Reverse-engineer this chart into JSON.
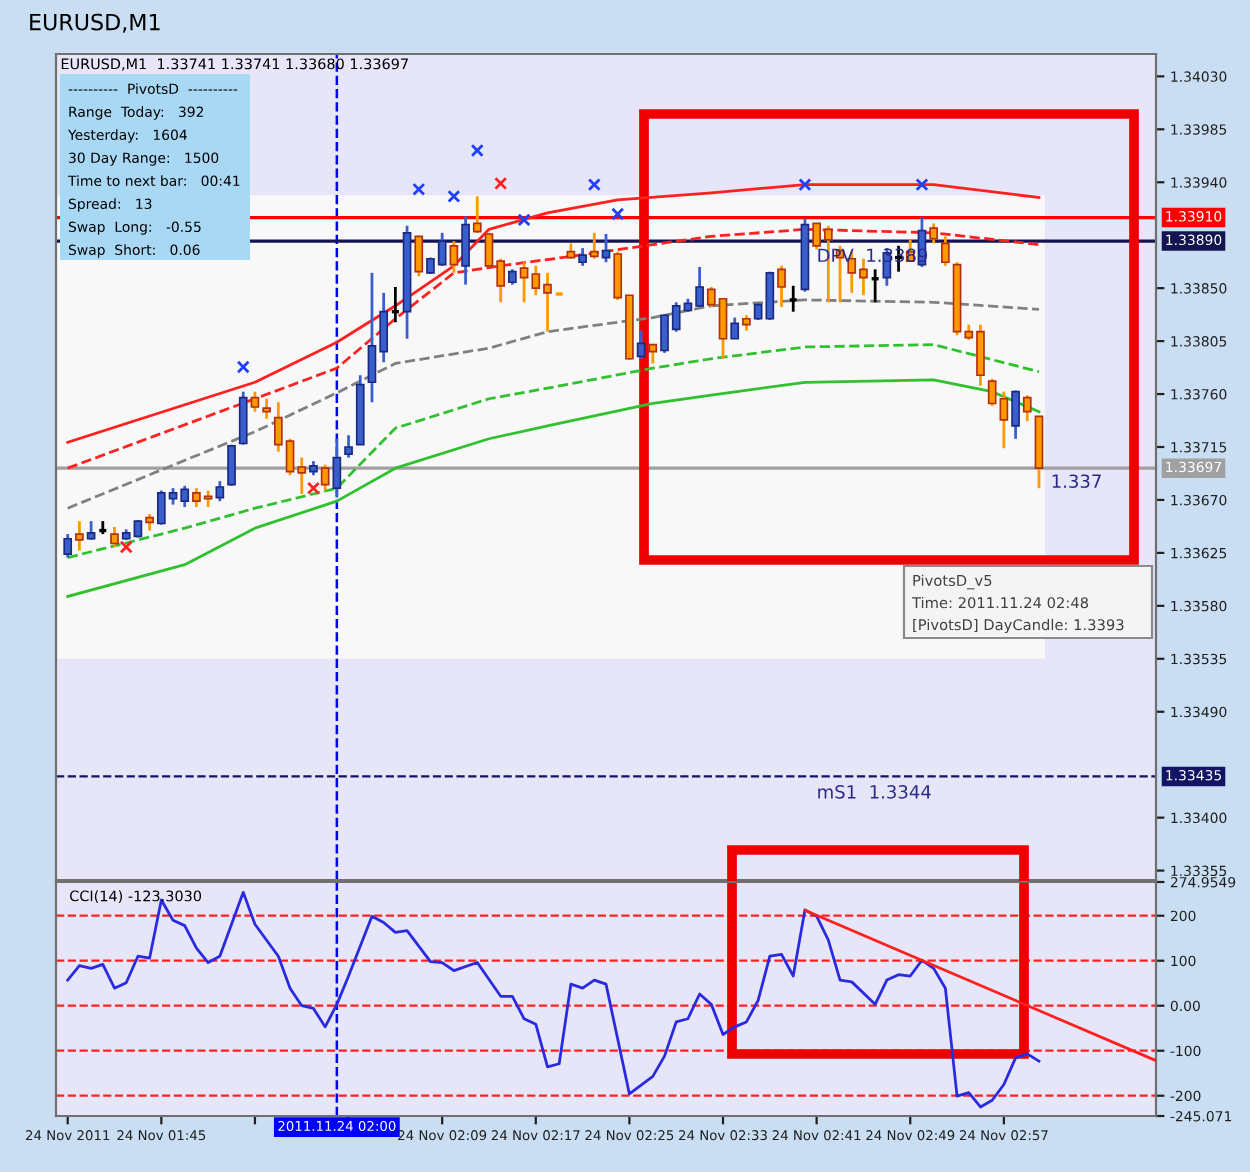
{
  "chart_data": [
    {
      "type": "candlestick",
      "title": "EURUSD,M1",
      "subtitle": "EURUSD,M1  1.33741 1.33741 1.33680 1.33697",
      "x": [
        "2011-11-24T01:37",
        "2011-11-24T01:38",
        "2011-11-24T01:39",
        "2011-11-24T01:40",
        "2011-11-24T01:41",
        "2011-11-24T01:42",
        "2011-11-24T01:43",
        "2011-11-24T01:44",
        "2011-11-24T01:45",
        "2011-11-24T01:46",
        "2011-11-24T01:47",
        "2011-11-24T01:48",
        "2011-11-24T01:49",
        "2011-11-24T01:50",
        "2011-11-24T01:51",
        "2011-11-24T01:52",
        "2011-11-24T01:53",
        "2011-11-24T01:54",
        "2011-11-24T01:55",
        "2011-11-24T01:56",
        "2011-11-24T01:57",
        "2011-11-24T01:58",
        "2011-11-24T01:59",
        "2011-11-24T02:00",
        "2011-11-24T02:01",
        "2011-11-24T02:02",
        "2011-11-24T02:03",
        "2011-11-24T02:04",
        "2011-11-24T02:05",
        "2011-11-24T02:06",
        "2011-11-24T02:07",
        "2011-11-24T02:08",
        "2011-11-24T02:09",
        "2011-11-24T02:10",
        "2011-11-24T02:11",
        "2011-11-24T02:12",
        "2011-11-24T02:13",
        "2011-11-24T02:14",
        "2011-11-24T02:15",
        "2011-11-24T02:16",
        "2011-11-24T02:17",
        "2011-11-24T02:18",
        "2011-11-24T02:19",
        "2011-11-24T02:20",
        "2011-11-24T02:21",
        "2011-11-24T02:22",
        "2011-11-24T02:23",
        "2011-11-24T02:24",
        "2011-11-24T02:25",
        "2011-11-24T02:26",
        "2011-11-24T02:27",
        "2011-11-24T02:28",
        "2011-11-24T02:29",
        "2011-11-24T02:30",
        "2011-11-24T02:31",
        "2011-11-24T02:32",
        "2011-11-24T02:33",
        "2011-11-24T02:34",
        "2011-11-24T02:35",
        "2011-11-24T02:36",
        "2011-11-24T02:37",
        "2011-11-24T02:38",
        "2011-11-24T02:39",
        "2011-11-24T02:40",
        "2011-11-24T02:41",
        "2011-11-24T02:42",
        "2011-11-24T02:43",
        "2011-11-24T02:44",
        "2011-11-24T02:45",
        "2011-11-24T02:46",
        "2011-11-24T02:47",
        "2011-11-24T02:48",
        "2011-11-24T02:49",
        "2011-11-24T02:50",
        "2011-11-24T02:51",
        "2011-11-24T02:52",
        "2011-11-24T02:53",
        "2011-11-24T02:54",
        "2011-11-24T02:55",
        "2011-11-24T02:56",
        "2011-11-24T02:57",
        "2011-11-24T02:58",
        "2011-11-24T02:59",
        "2011-11-24T03:00"
      ],
      "ohlc": [
        [
          1.33624,
          1.33641,
          1.33621,
          1.33637
        ],
        [
          1.33641,
          1.33652,
          1.33627,
          1.33636
        ],
        [
          1.33637,
          1.33652,
          1.33636,
          1.33642
        ],
        [
          1.33644,
          1.33652,
          1.33641,
          1.33644
        ],
        [
          1.33641,
          1.33647,
          1.3363,
          1.33633
        ],
        [
          1.33637,
          1.33645,
          1.33636,
          1.33642
        ],
        [
          1.33639,
          1.33653,
          1.33638,
          1.33652
        ],
        [
          1.33655,
          1.33658,
          1.33644,
          1.33651
        ],
        [
          1.3365,
          1.33678,
          1.33649,
          1.33676
        ],
        [
          1.33671,
          1.3368,
          1.33666,
          1.33676
        ],
        [
          1.33669,
          1.33682,
          1.33664,
          1.33679
        ],
        [
          1.33676,
          1.3368,
          1.33664,
          1.33669
        ],
        [
          1.33673,
          1.33678,
          1.33664,
          1.33671
        ],
        [
          1.33672,
          1.33686,
          1.33669,
          1.33681
        ],
        [
          1.33683,
          1.33717,
          1.33682,
          1.33716
        ],
        [
          1.33718,
          1.33762,
          1.33717,
          1.33757
        ],
        [
          1.33757,
          1.33762,
          1.33745,
          1.33749
        ],
        [
          1.33748,
          1.33756,
          1.33739,
          1.33745
        ],
        [
          1.3374,
          1.33753,
          1.33711,
          1.33717
        ],
        [
          1.3372,
          1.33722,
          1.33691,
          1.33694
        ],
        [
          1.33698,
          1.33706,
          1.33675,
          1.33693
        ],
        [
          1.33694,
          1.33703,
          1.33691,
          1.33699
        ],
        [
          1.33697,
          1.337,
          1.33678,
          1.33683
        ],
        [
          1.3368,
          1.33722,
          1.33672,
          1.33706
        ],
        [
          1.33709,
          1.33725,
          1.33706,
          1.33715
        ],
        [
          1.33717,
          1.33776,
          1.33717,
          1.33768
        ],
        [
          1.3377,
          1.33863,
          1.33753,
          1.33801
        ],
        [
          1.33796,
          1.33846,
          1.33787,
          1.3383
        ],
        [
          1.3383,
          1.33851,
          1.33821,
          1.3383
        ],
        [
          1.3383,
          1.33903,
          1.33807,
          1.33897
        ],
        [
          1.33894,
          1.33894,
          1.3386,
          1.33864
        ],
        [
          1.33863,
          1.33876,
          1.33862,
          1.33875
        ],
        [
          1.3387,
          1.33897,
          1.33869,
          1.3389
        ],
        [
          1.33886,
          1.3389,
          1.33863,
          1.3387
        ],
        [
          1.33869,
          1.33911,
          1.33853,
          1.33904
        ],
        [
          1.33905,
          1.33928,
          1.33897,
          1.33898
        ],
        [
          1.33896,
          1.33897,
          1.33868,
          1.33869
        ],
        [
          1.33873,
          1.33875,
          1.33838,
          1.33852
        ],
        [
          1.33855,
          1.33866,
          1.33853,
          1.33864
        ],
        [
          1.33867,
          1.33872,
          1.33838,
          1.33859
        ],
        [
          1.33862,
          1.33869,
          1.33844,
          1.3385
        ],
        [
          1.33853,
          1.33863,
          1.33813,
          1.33846
        ],
        [
          1.33845,
          1.33846,
          1.33844,
          1.33845
        ],
        [
          1.33881,
          1.33888,
          1.33875,
          1.33876
        ],
        [
          1.33872,
          1.33884,
          1.33869,
          1.33878
        ],
        [
          1.33881,
          1.33897,
          1.33875,
          1.33877
        ],
        [
          1.33876,
          1.33896,
          1.33872,
          1.33882
        ],
        [
          1.33879,
          1.33881,
          1.3384,
          1.33842
        ],
        [
          1.33844,
          1.33844,
          1.33789,
          1.3379
        ],
        [
          1.33792,
          1.33814,
          1.3379,
          1.33803
        ],
        [
          1.33802,
          1.33802,
          1.33786,
          1.33796
        ],
        [
          1.33797,
          1.33828,
          1.33795,
          1.33827
        ],
        [
          1.33815,
          1.33838,
          1.33813,
          1.33835
        ],
        [
          1.33831,
          1.33841,
          1.3383,
          1.33837
        ],
        [
          1.33835,
          1.33868,
          1.33834,
          1.33851
        ],
        [
          1.33849,
          1.33851,
          1.33834,
          1.33836
        ],
        [
          1.33841,
          1.33841,
          1.3379,
          1.33807
        ],
        [
          1.33807,
          1.33825,
          1.33807,
          1.3382
        ],
        [
          1.33824,
          1.33827,
          1.33814,
          1.33819
        ],
        [
          1.33824,
          1.33837,
          1.33823,
          1.33836
        ],
        [
          1.33824,
          1.33864,
          1.33823,
          1.33863
        ],
        [
          1.33866,
          1.33869,
          1.33834,
          1.33851
        ],
        [
          1.3384,
          1.33852,
          1.3383,
          1.3384
        ],
        [
          1.33849,
          1.33909,
          1.33847,
          1.33904
        ],
        [
          1.33905,
          1.33905,
          1.33883,
          1.33886
        ],
        [
          1.339,
          1.33903,
          1.33838,
          1.33891
        ],
        [
          1.33882,
          1.33886,
          1.33838,
          1.33876
        ],
        [
          1.33875,
          1.33881,
          1.33846,
          1.33863
        ],
        [
          1.33866,
          1.33875,
          1.33844,
          1.33859
        ],
        [
          1.33858,
          1.33866,
          1.33838,
          1.33858
        ],
        [
          1.33859,
          1.33884,
          1.33852,
          1.3388
        ],
        [
          1.33876,
          1.33886,
          1.33864,
          1.33876
        ],
        [
          1.33881,
          1.33891,
          1.33873,
          1.33873
        ],
        [
          1.3387,
          1.3391,
          1.33868,
          1.33899
        ],
        [
          1.33901,
          1.33905,
          1.33888,
          1.33892
        ],
        [
          1.33888,
          1.33894,
          1.33869,
          1.33872
        ],
        [
          1.3387,
          1.33872,
          1.3381,
          1.33813
        ],
        [
          1.33813,
          1.33819,
          1.33806,
          1.33808
        ],
        [
          1.33813,
          1.33819,
          1.33767,
          1.33776
        ],
        [
          1.33771,
          1.33773,
          1.3375,
          1.33752
        ],
        [
          1.33756,
          1.33762,
          1.33714,
          1.33738
        ],
        [
          1.33733,
          1.33763,
          1.33722,
          1.33762
        ],
        [
          1.33757,
          1.33759,
          1.33737,
          1.33745
        ],
        [
          1.33741,
          1.33741,
          1.3368,
          1.33697
        ]
      ],
      "colors": [
        "#3a5fcd",
        "#ff9900",
        "#3a5fcd",
        "#000000",
        "#ff9900",
        "#3a5fcd",
        "#3a5fcd",
        "#ff9900",
        "#3a5fcd",
        "#3a5fcd",
        "#3a5fcd",
        "#ff9900",
        "#ff9900",
        "#3a5fcd",
        "#3a5fcd",
        "#3a5fcd",
        "#ff9900",
        "#ff9900",
        "#ff9900",
        "#ff9900",
        "#ff9900",
        "#3a5fcd",
        "#ff9900",
        "#3a5fcd",
        "#3a5fcd",
        "#3a5fcd",
        "#3a5fcd",
        "#3a5fcd",
        "#000000",
        "#3a5fcd",
        "#ff9900",
        "#3a5fcd",
        "#3a5fcd",
        "#ff9900",
        "#3a5fcd",
        "#ff9900",
        "#ff9900",
        "#ff9900",
        "#3a5fcd",
        "#ff9900",
        "#ff9900",
        "#ff9900",
        "#ff9900",
        "#ff9900",
        "#3a5fcd",
        "#ff9900",
        "#3a5fcd",
        "#ff9900",
        "#ff9900",
        "#3a5fcd",
        "#ff9900",
        "#3a5fcd",
        "#3a5fcd",
        "#3a5fcd",
        "#3a5fcd",
        "#ff9900",
        "#ff9900",
        "#3a5fcd",
        "#ff9900",
        "#3a5fcd",
        "#3a5fcd",
        "#ff9900",
        "#000000",
        "#3a5fcd",
        "#ff9900",
        "#ff9900",
        "#ff9900",
        "#ff9900",
        "#ff9900",
        "#000000",
        "#3a5fcd",
        "#000000",
        "#ff9900",
        "#3a5fcd",
        "#ff9900",
        "#ff9900",
        "#ff9900",
        "#ff9900",
        "#ff9900",
        "#ff9900",
        "#ff9900",
        "#3a5fcd",
        "#ff9900",
        "#ff9900"
      ],
      "series": [
        {
          "type": "line",
          "color": "#ff2020",
          "line_style": "solid",
          "x": [
            "2011-11-24T01:37",
            "2011-11-24T01:53",
            "2011-11-24T02:00",
            "2011-11-24T02:05",
            "2011-11-24T02:10",
            "2011-11-24T02:13",
            "2011-11-24T02:18",
            "2011-11-24T02:24",
            "2011-11-24T02:32",
            "2011-11-24T02:40",
            "2011-11-24T02:51",
            "2011-11-24T03:00"
          ],
          "values": [
            1.33719,
            1.3377,
            1.33804,
            1.33835,
            1.33869,
            1.339,
            1.33914,
            1.33925,
            1.33931,
            1.33938,
            1.33938,
            1.33927
          ]
        },
        {
          "type": "line",
          "color": "#ff2020",
          "line_style": "dashed",
          "x": [
            "2011-11-24T01:37",
            "2011-11-24T01:53",
            "2011-11-24T02:00",
            "2011-11-24T02:05",
            "2011-11-24T02:10",
            "2011-11-24T02:14",
            "2011-11-24T02:20",
            "2011-11-24T02:27",
            "2011-11-24T02:32",
            "2011-11-24T02:40",
            "2011-11-24T02:51",
            "2011-11-24T03:00"
          ],
          "values": [
            1.33697,
            1.33756,
            1.33782,
            1.33824,
            1.33863,
            1.33869,
            1.33877,
            1.33887,
            1.33894,
            1.339,
            1.33897,
            1.33887
          ]
        },
        {
          "type": "line",
          "color": "#808080",
          "line_style": "dashed",
          "x": [
            "2011-11-24T01:37",
            "2011-11-24T01:53",
            "2011-11-24T02:00",
            "2011-11-24T02:05",
            "2011-11-24T02:13",
            "2011-11-24T02:18",
            "2011-11-24T02:27",
            "2011-11-24T02:32",
            "2011-11-24T02:40",
            "2011-11-24T02:51",
            "2011-11-24T03:00"
          ],
          "values": [
            1.33663,
            1.33728,
            1.33761,
            1.33786,
            1.33799,
            1.33813,
            1.33825,
            1.33835,
            1.3384,
            1.33838,
            1.33832
          ]
        },
        {
          "type": "line",
          "color": "#30c030",
          "line_style": "dashed",
          "x": [
            "2011-11-24T01:37",
            "2011-11-24T01:47",
            "2011-11-24T01:53",
            "2011-11-24T02:00",
            "2011-11-24T02:05",
            "2011-11-24T02:13",
            "2011-11-24T02:18",
            "2011-11-24T02:27",
            "2011-11-24T02:32",
            "2011-11-24T02:40",
            "2011-11-24T02:51",
            "2011-11-24T03:00"
          ],
          "values": [
            1.33621,
            1.33646,
            1.33663,
            1.3368,
            1.33731,
            1.33756,
            1.33765,
            1.33782,
            1.3379,
            1.338,
            1.33802,
            1.33779
          ]
        },
        {
          "type": "line",
          "color": "#30c030",
          "line_style": "solid",
          "x": [
            "2011-11-24T01:37",
            "2011-11-24T01:47",
            "2011-11-24T01:53",
            "2011-11-24T02:00",
            "2011-11-24T02:05",
            "2011-11-24T02:13",
            "2011-11-24T02:18",
            "2011-11-24T02:27",
            "2011-11-24T02:32",
            "2011-11-24T02:40",
            "2011-11-24T02:51",
            "2011-11-24T02:56",
            "2011-11-24T03:00"
          ],
          "values": [
            1.33588,
            1.33615,
            1.33646,
            1.33669,
            1.33697,
            1.33722,
            1.33733,
            1.33752,
            1.33759,
            1.3377,
            1.33772,
            1.33762,
            1.33745
          ]
        },
        {
          "type": "scatter",
          "color": "#2040ff",
          "marker": "cross",
          "x": [
            "2011-11-24T01:52",
            "2011-11-24T02:07",
            "2011-11-24T02:10",
            "2011-11-24T02:12",
            "2011-11-24T02:16",
            "2011-11-24T02:22",
            "2011-11-24T02:24",
            "2011-11-24T02:40",
            "2011-11-24T02:50"
          ],
          "values": [
            1.33783,
            1.33934,
            1.33928,
            1.33967,
            1.33908,
            1.33938,
            1.33913,
            1.33938,
            1.33938
          ]
        },
        {
          "type": "scatter",
          "color": "#ff2020",
          "marker": "cross",
          "x": [
            "2011-11-24T01:42",
            "2011-11-24T01:58",
            "2011-11-24T02:14"
          ],
          "values": [
            1.3363,
            1.3368,
            1.33939
          ]
        }
      ],
      "xlim": [
        "2011-11-24T01:36",
        "2011-11-24T03:10"
      ],
      "ylim": [
        1.33347,
        1.34049
      ],
      "yticks": [
        {
          "value": 1.3403,
          "label": "1.34030"
        },
        {
          "value": 1.33985,
          "label": "1.33985"
        },
        {
          "value": 1.3394,
          "label": "1.33940"
        },
        {
          "value": 1.3385,
          "label": "1.33850"
        },
        {
          "value": 1.33805,
          "label": "1.33805"
        },
        {
          "value": 1.3376,
          "label": "1.33760"
        },
        {
          "value": 1.33715,
          "label": "1.33715"
        },
        {
          "value": 1.3367,
          "label": "1.33670"
        },
        {
          "value": 1.33625,
          "label": "1.33625"
        },
        {
          "value": 1.3358,
          "label": "1.33580"
        },
        {
          "value": 1.33535,
          "label": "1.33535"
        },
        {
          "value": 1.3349,
          "label": "1.33490"
        },
        {
          "value": 1.334,
          "label": "1.33400"
        },
        {
          "value": 1.33355,
          "label": "1.33355"
        }
      ],
      "tick_labels": "y",
      "bands": [
        {
          "axis": "y",
          "from": 1.33535,
          "to": 1.33929,
          "color": "#f8f8f8"
        }
      ],
      "ref_lines": [
        {
          "axis": "x",
          "value": "2011-11-24T02:00",
          "color": "#0000ff",
          "line_style": "dashed"
        },
        {
          "axis": "y",
          "value": 1.3391,
          "label": "1.33910",
          "color": "#ff0000",
          "line_style": "solid"
        },
        {
          "axis": "y",
          "value": 1.3389,
          "label": "1.33890",
          "color": "#141450",
          "line_style": "solid"
        },
        {
          "axis": "y",
          "value": 1.33697,
          "label": "1.33697",
          "color": "#a0a0a0",
          "line_style": "solid"
        },
        {
          "axis": "y",
          "value": 1.33435,
          "label": "1.33435",
          "color": "#141464",
          "line_style": "dashed"
        }
      ],
      "annotations": [
        "----------  PivotsD  ----------",
        "Range  Today:   392",
        "Yesterday:   1604",
        "30 Day Range:   1500",
        "Time to next bar:   00:41",
        "Spread:   13",
        "Swap  Long:   -0.55",
        "Swap  Short:   0.06",
        "PivotsD_v5",
        "Time: 2011.11.24 02:48",
        "[PivotsD] DayCandle: 1.3393",
        {
          "text": "DPV  1.3389",
          "x": "2011-11-24T02:41",
          "y": 1.33884
        },
        {
          "text": "1.337",
          "x": "2011-11-24T03:01",
          "y": 1.33692
        },
        {
          "text": "mS1  1.3344",
          "x": "2011-11-24T02:41",
          "y": 1.33428
        }
      ]
    },
    {
      "type": "line",
      "title": "CCI(14) -123.3030",
      "series": [
        {
          "type": "line",
          "color": "#2a2ae0",
          "line_style": "solid",
          "x": [
            "2011-11-24T01:37",
            "2011-11-24T01:38",
            "2011-11-24T01:39",
            "2011-11-24T01:40",
            "2011-11-24T01:41",
            "2011-11-24T01:42",
            "2011-11-24T01:43",
            "2011-11-24T01:44",
            "2011-11-24T01:45",
            "2011-11-24T01:46",
            "2011-11-24T01:47",
            "2011-11-24T01:48",
            "2011-11-24T01:49",
            "2011-11-24T01:50",
            "2011-11-24T01:52",
            "2011-11-24T01:53",
            "2011-11-24T01:55",
            "2011-11-24T01:56",
            "2011-11-24T01:57",
            "2011-11-24T01:58",
            "2011-11-24T01:59",
            "2011-11-24T02:00",
            "2011-11-24T02:01",
            "2011-11-24T02:03",
            "2011-11-24T02:04",
            "2011-11-24T02:05",
            "2011-11-24T02:06",
            "2011-11-24T02:08",
            "2011-11-24T02:09",
            "2011-11-24T02:10",
            "2011-11-24T02:12",
            "2011-11-24T02:14",
            "2011-11-24T02:15",
            "2011-11-24T02:16",
            "2011-11-24T02:17",
            "2011-11-24T02:18",
            "2011-11-24T02:19",
            "2011-11-24T02:20",
            "2011-11-24T02:21",
            "2011-11-24T02:22",
            "2011-11-24T02:23",
            "2011-11-24T02:25",
            "2011-11-24T02:27",
            "2011-11-24T02:28",
            "2011-11-24T02:29",
            "2011-11-24T02:30",
            "2011-11-24T02:31",
            "2011-11-24T02:32",
            "2011-11-24T02:33",
            "2011-11-24T02:34",
            "2011-11-24T02:35",
            "2011-11-24T02:36",
            "2011-11-24T02:37",
            "2011-11-24T02:38",
            "2011-11-24T02:39",
            "2011-11-24T02:40",
            "2011-11-24T02:41",
            "2011-11-24T02:42",
            "2011-11-24T02:43",
            "2011-11-24T02:44",
            "2011-11-24T02:46",
            "2011-11-24T02:47",
            "2011-11-24T02:48",
            "2011-11-24T02:49",
            "2011-11-24T02:50",
            "2011-11-24T02:51",
            "2011-11-24T02:52",
            "2011-11-24T02:53",
            "2011-11-24T02:54",
            "2011-11-24T02:55",
            "2011-11-24T02:56",
            "2011-11-24T02:57",
            "2011-11-24T02:58",
            "2011-11-24T02:59",
            "2011-11-24T03:00"
          ],
          "values": [
            57,
            89,
            83,
            92,
            39,
            51,
            110,
            106,
            235,
            190,
            178,
            128,
            96,
            110,
            252,
            181,
            110,
            39,
            0,
            -6,
            -47,
            3,
            66,
            199,
            185,
            163,
            167,
            98,
            96,
            78,
            96,
            21,
            21,
            -29,
            -41,
            -136,
            -129,
            48,
            39,
            57,
            48,
            -196,
            -157,
            -112,
            -36,
            -29,
            26,
            3,
            -64,
            -47,
            -36,
            12,
            110,
            114,
            66,
            213,
            199,
            146,
            57,
            53,
            3,
            57,
            69,
            66,
            101,
            83,
            39,
            -201,
            -193,
            -225,
            -210,
            -175,
            -116,
            -107,
            -123.3
          ]
        },
        {
          "type": "line",
          "color": "#ff2020",
          "line_style": "solid",
          "x": [
            "2011-11-24T02:40",
            "2011-11-24T03:10"
          ],
          "values": [
            212,
            -122
          ]
        }
      ],
      "xlim": [
        "2011-11-24T01:36",
        "2011-11-24T03:10"
      ],
      "ylim": [
        -245.071,
        274.9549
      ],
      "xticks": [
        {
          "value": "2011-11-24T01:37",
          "label": "24 Nov 2011"
        },
        {
          "value": "2011-11-24T01:45",
          "label": "24 Nov 01:45"
        },
        {
          "value": "2011-11-24T01:53",
          "label": null
        },
        {
          "value": "2011-11-24T02:01",
          "label": null
        },
        {
          "value": "2011-11-24T02:09",
          "label": "24 Nov 02:09"
        },
        {
          "value": "2011-11-24T02:17",
          "label": "24 Nov 02:17"
        },
        {
          "value": "2011-11-24T02:25",
          "label": "24 Nov 02:25"
        },
        {
          "value": "2011-11-24T02:33",
          "label": "24 Nov 02:33"
        },
        {
          "value": "2011-11-24T02:41",
          "label": "24 Nov 02:41"
        },
        {
          "value": "2011-11-24T02:49",
          "label": "24 Nov 02:49"
        },
        {
          "value": "2011-11-24T02:57",
          "label": "24 Nov 02:57"
        }
      ],
      "yticks": [
        {
          "value": 274.9549,
          "label": "274.9549"
        },
        200,
        100,
        {
          "value": 0,
          "label": "0.00"
        },
        -100,
        -200,
        {
          "value": -245.071,
          "label": "-245.071"
        }
      ],
      "ref_lines": [
        {
          "axis": "x",
          "value": "2011-11-24T02:00",
          "label": "2011.11.24 02:00",
          "color": "#0000ff",
          "line_style": "dashed"
        },
        {
          "axis": "y",
          "value": 200,
          "color": "#ff2020",
          "line_style": "dashed"
        },
        {
          "axis": "y",
          "value": 100,
          "color": "#ff2020",
          "line_style": "dashed"
        },
        {
          "axis": "y",
          "value": 0,
          "color": "#ff2020",
          "line_style": "dashed"
        },
        {
          "axis": "y",
          "value": -100,
          "color": "#ff2020",
          "line_style": "dashed"
        },
        {
          "axis": "y",
          "value": -200,
          "color": "#ff2020",
          "line_style": "dashed"
        }
      ]
    }
  ]
}
